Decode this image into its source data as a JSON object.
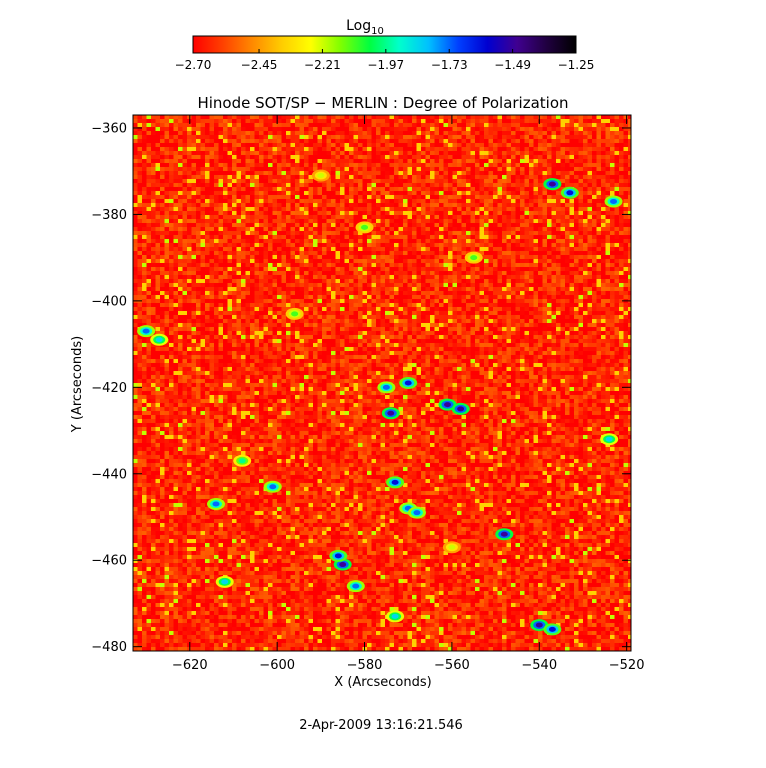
{
  "chart_data": {
    "type": "heatmap",
    "title": "Hinode SOT/SP − MERLIN : Degree of Polarization",
    "xlabel": "X (Arcseconds)",
    "ylabel": "Y (Arcseconds)",
    "xlim": [
      -633,
      -519
    ],
    "ylim": [
      -481,
      -357
    ],
    "xticks": [
      -620,
      -600,
      -580,
      -560,
      -540,
      -520
    ],
    "yticks": [
      -360,
      -380,
      -400,
      -420,
      -440,
      -460,
      -480
    ],
    "xtick_labels": [
      "−620",
      "−600",
      "−580",
      "−560",
      "−540",
      "−520"
    ],
    "ytick_labels": [
      "−360",
      "−380",
      "−400",
      "−420",
      "−440",
      "−460",
      "−480"
    ],
    "colorbar": {
      "label_main": "Log",
      "label_sub": "10",
      "min": -2.7,
      "max": -1.25,
      "ticks": [
        -2.7,
        -2.45,
        -2.21,
        -1.97,
        -1.73,
        -1.49,
        -1.25
      ],
      "tick_labels": [
        "−2.70",
        "−2.45",
        "−2.21",
        "−1.97",
        "−1.73",
        "−1.49",
        "−1.25"
      ],
      "colors": [
        "#ff0000",
        "#ff4000",
        "#ff8800",
        "#ffcc00",
        "#ffff00",
        "#80ff00",
        "#00ff40",
        "#00ffcc",
        "#00c0ff",
        "#0040ff",
        "#0000d0",
        "#400090",
        "#200040",
        "#000000"
      ]
    },
    "background_level": -2.62,
    "features": [
      {
        "x": -630,
        "y": -407,
        "value": -1.73
      },
      {
        "x": -627,
        "y": -409,
        "value": -1.85
      },
      {
        "x": -614,
        "y": -447,
        "value": -1.73
      },
      {
        "x": -612,
        "y": -465,
        "value": -1.85
      },
      {
        "x": -608,
        "y": -437,
        "value": -1.97
      },
      {
        "x": -601,
        "y": -443,
        "value": -1.73
      },
      {
        "x": -585,
        "y": -461,
        "value": -1.49
      },
      {
        "x": -586,
        "y": -459,
        "value": -1.61
      },
      {
        "x": -582,
        "y": -466,
        "value": -1.73
      },
      {
        "x": -575,
        "y": -420,
        "value": -1.73
      },
      {
        "x": -574,
        "y": -426,
        "value": -1.49
      },
      {
        "x": -573,
        "y": -442,
        "value": -1.61
      },
      {
        "x": -570,
        "y": -419,
        "value": -1.61
      },
      {
        "x": -570,
        "y": -448,
        "value": -1.73
      },
      {
        "x": -568,
        "y": -449,
        "value": -1.73
      },
      {
        "x": -573,
        "y": -473,
        "value": -1.85
      },
      {
        "x": -561,
        "y": -424,
        "value": -1.49
      },
      {
        "x": -558,
        "y": -425,
        "value": -1.49
      },
      {
        "x": -548,
        "y": -454,
        "value": -1.49
      },
      {
        "x": -540,
        "y": -475,
        "value": -1.49
      },
      {
        "x": -537,
        "y": -476,
        "value": -1.61
      },
      {
        "x": -537,
        "y": -373,
        "value": -1.49
      },
      {
        "x": -533,
        "y": -375,
        "value": -1.61
      },
      {
        "x": -523,
        "y": -377,
        "value": -1.73
      },
      {
        "x": -524,
        "y": -432,
        "value": -1.85
      },
      {
        "x": -596,
        "y": -403,
        "value": -2.09
      },
      {
        "x": -580,
        "y": -383,
        "value": -2.09
      },
      {
        "x": -590,
        "y": -371,
        "value": -2.21
      },
      {
        "x": -555,
        "y": -390,
        "value": -2.09
      },
      {
        "x": -560,
        "y": -457,
        "value": -2.21
      }
    ]
  },
  "footer": {
    "timestamp": "2-Apr-2009 13:16:21.546"
  }
}
